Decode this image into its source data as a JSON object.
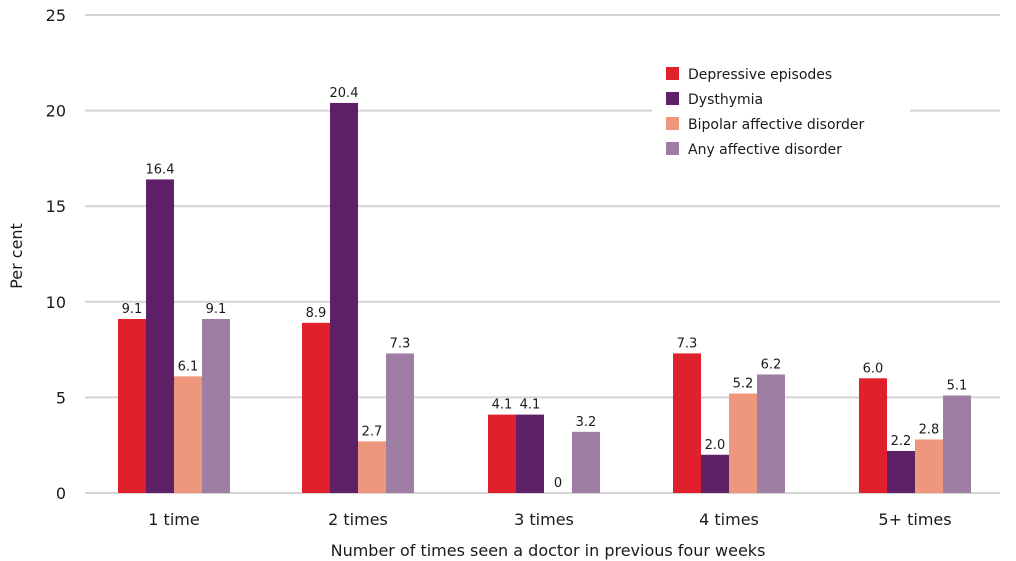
{
  "chart_data": {
    "type": "bar",
    "xlabel": "Number of times seen a doctor in previous four weeks",
    "ylabel": "Per cent",
    "ylim": [
      0,
      25
    ],
    "yticks": [
      "0",
      "5",
      "10",
      "15",
      "20",
      "25"
    ],
    "grid": true,
    "legend_position": "top-right",
    "categories": [
      "1 time",
      "2 times",
      "3 times",
      "4 times",
      "5+ times"
    ],
    "series": [
      {
        "name": "Depressive episodes",
        "color": "#e0202a",
        "values": [
          9.1,
          8.9,
          4.1,
          7.3,
          6.0
        ],
        "labels": [
          "9.1",
          "8.9",
          "4.1",
          "7.3",
          "6.0"
        ]
      },
      {
        "name": "Dysthymia",
        "color": "#5e2167",
        "values": [
          16.4,
          20.4,
          4.1,
          2.0,
          2.2
        ],
        "labels": [
          "16.4",
          "20.4",
          "4.1",
          "2.0",
          "2.2"
        ]
      },
      {
        "name": "Bipolar affective disorder",
        "color": "#ef977d",
        "values": [
          6.1,
          2.7,
          0,
          5.2,
          2.8
        ],
        "labels": [
          "6.1",
          "2.7",
          "0",
          "5.2",
          "2.8"
        ]
      },
      {
        "name": "Any affective disorder",
        "color": "#9e7fa3",
        "values": [
          9.1,
          7.3,
          3.2,
          6.2,
          5.1
        ],
        "labels": [
          "9.1",
          "7.3",
          "3.2",
          "6.2",
          "5.1"
        ]
      }
    ]
  }
}
